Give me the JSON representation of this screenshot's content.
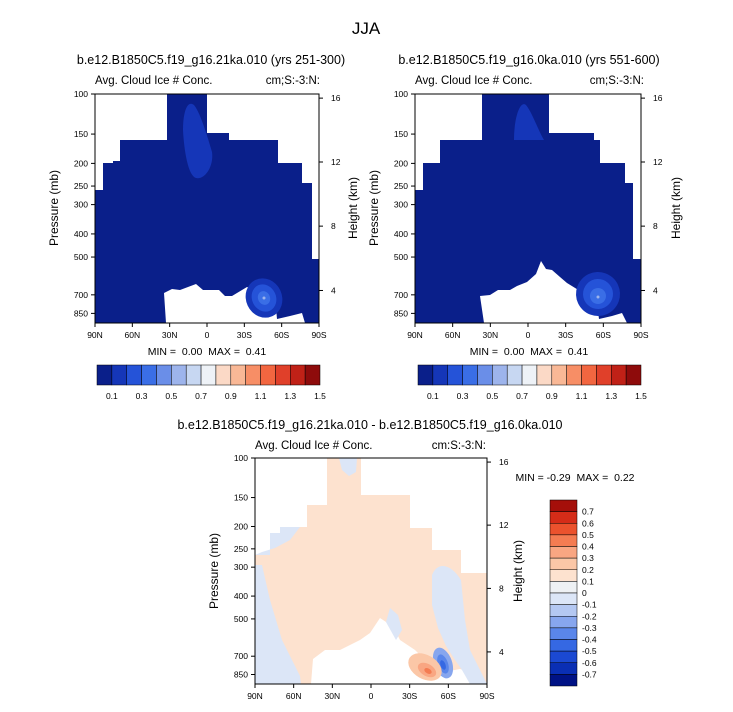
{
  "figure": {
    "season": "JJA",
    "colors": {
      "sequential": [
        "#0a1f8a",
        "#1536b8",
        "#2553d8",
        "#3a6ee6",
        "#6a8ee8",
        "#9db4ec",
        "#c7d7f2",
        "#eef2f7",
        "#fbd9c6",
        "#f9b896",
        "#f78e66",
        "#f26640",
        "#e0402a",
        "#c02117",
        "#8e0b0b"
      ],
      "diverging": [
        "#001285",
        "#0a2fb4",
        "#1b49d2",
        "#3568e3",
        "#5a86ea",
        "#87a6ee",
        "#b4c8f2",
        "#dce6f7",
        "#eef1f4",
        "#fde2cf",
        "#fbc7a7",
        "#f9a682",
        "#f47c52",
        "#eb522d",
        "#d52c18",
        "#a50f0a"
      ]
    }
  },
  "chart_data": [
    {
      "type": "heatmap",
      "title": "b.e12.B1850C5.f19_g16.21ka.010 (yrs 251-300)",
      "left_label": "Avg. Cloud Ice # Conc.",
      "right_label": "cm;S:-3:N:",
      "xlabel": "",
      "ylabel": "Pressure (mb)",
      "y2label": "Height (km)",
      "x_ticks": [
        "90N",
        "60N",
        "30N",
        "0",
        "30S",
        "60S",
        "90S"
      ],
      "y_ticks": [
        "100",
        "150",
        "200",
        "250",
        "300",
        "400",
        "500",
        "700",
        "850"
      ],
      "y2_ticks": [
        "16",
        "12",
        "8",
        "4"
      ],
      "min_max": "MIN =  0.00  MAX =  0.41",
      "colorbar_labels": [
        "0.1",
        "0.3",
        "0.5",
        "0.7",
        "0.9",
        "1.1",
        "1.3",
        "1.5"
      ],
      "colorbar_type": "horizontal"
    },
    {
      "type": "heatmap",
      "title": "b.e12.B1850C5.f19_g16.0ka.010 (yrs 551-600)",
      "left_label": "Avg. Cloud Ice # Conc.",
      "right_label": "cm;S:-3:N:",
      "xlabel": "",
      "ylabel": "Pressure (mb)",
      "y2label": "Height (km)",
      "x_ticks": [
        "90N",
        "60N",
        "30N",
        "0",
        "30S",
        "60S",
        "90S"
      ],
      "y_ticks": [
        "100",
        "150",
        "200",
        "250",
        "300",
        "400",
        "500",
        "700",
        "850"
      ],
      "y2_ticks": [
        "16",
        "12",
        "8",
        "4"
      ],
      "min_max": "MIN =  0.00  MAX =  0.41",
      "colorbar_labels": [
        "0.1",
        "0.3",
        "0.5",
        "0.7",
        "0.9",
        "1.1",
        "1.3",
        "1.5"
      ],
      "colorbar_type": "horizontal"
    },
    {
      "type": "heatmap",
      "title": "b.e12.B1850C5.f19_g16.21ka.010 - b.e12.B1850C5.f19_g16.0ka.010",
      "left_label": "Avg. Cloud Ice # Conc.",
      "right_label": "cm:S:-3:N:",
      "xlabel": "",
      "ylabel": "Pressure (mb)",
      "y2label": "Height (km)",
      "x_ticks": [
        "90N",
        "60N",
        "30N",
        "0",
        "30S",
        "60S",
        "90S"
      ],
      "y_ticks": [
        "100",
        "150",
        "200",
        "250",
        "300",
        "400",
        "500",
        "700",
        "850"
      ],
      "y2_ticks": [
        "16",
        "12",
        "8",
        "4"
      ],
      "min_max": "MIN = -0.29  MAX =  0.22",
      "colorbar_labels": [
        "0.7",
        "0.6",
        "0.5",
        "0.4",
        "0.3",
        "0.2",
        "0.1",
        "0",
        "-0.1",
        "-0.2",
        "-0.3",
        "-0.4",
        "-0.5",
        "-0.6",
        "-0.7"
      ],
      "colorbar_type": "vertical"
    }
  ]
}
